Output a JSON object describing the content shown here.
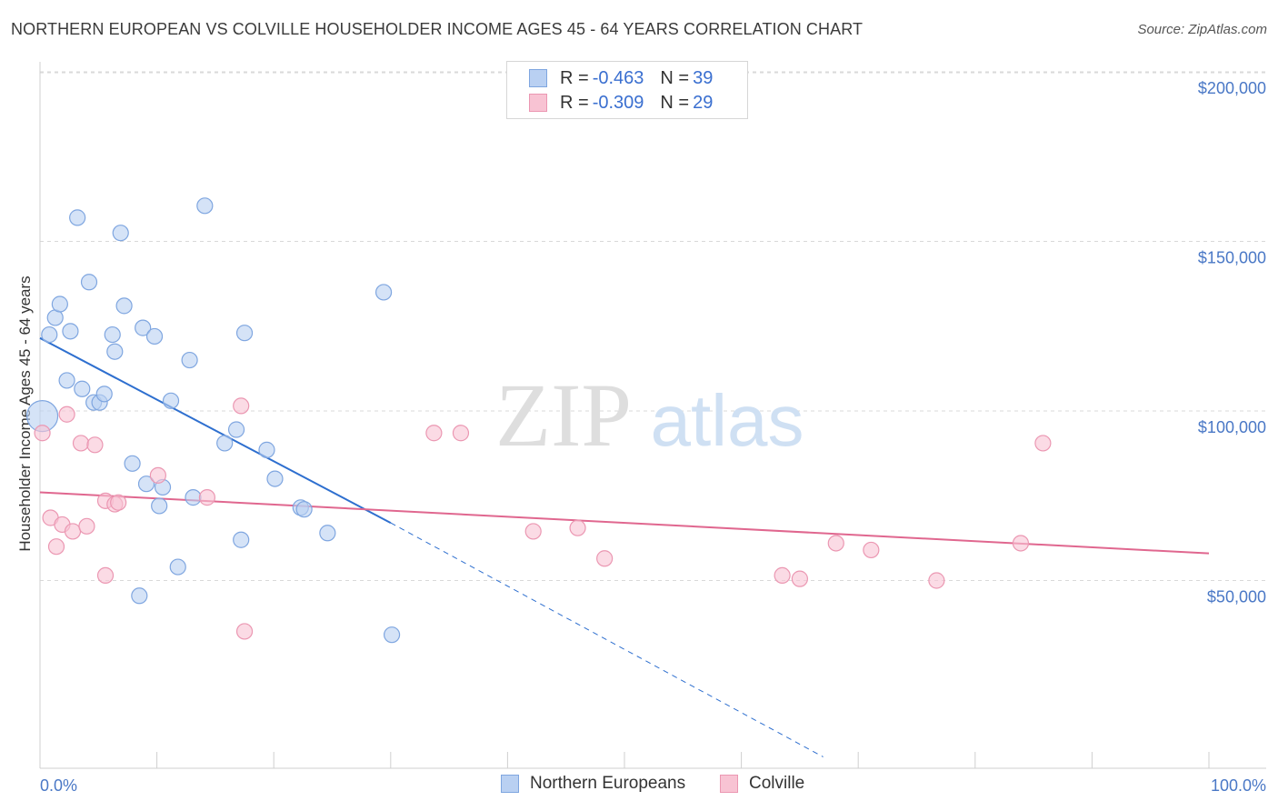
{
  "header": {
    "title": "NORTHERN EUROPEAN VS COLVILLE HOUSEHOLDER INCOME AGES 45 - 64 YEARS CORRELATION CHART",
    "source": "Source: ZipAtlas.com"
  },
  "watermark": {
    "zip": "ZIP",
    "atlas": "atlas"
  },
  "legend": {
    "rows": [
      {
        "r_label": "R = ",
        "r_value": "-0.463",
        "n_label": "N = ",
        "n_value": "39"
      },
      {
        "r_label": "R = ",
        "r_value": "-0.309",
        "n_label": "N = ",
        "n_value": "29"
      }
    ]
  },
  "colors": {
    "blue_fill": "#b9d0f2",
    "blue_stroke": "#7fa6e0",
    "blue_line": "#2e6fcf",
    "pink_fill": "#f8c3d3",
    "pink_stroke": "#eb97b2",
    "pink_line": "#e0678f",
    "grid": "#d9d9d9",
    "axis_text": "#4a78c6"
  },
  "chart_data": {
    "type": "scatter",
    "title": "NORTHERN EUROPEAN VS COLVILLE HOUSEHOLDER INCOME AGES 45 - 64 YEARS CORRELATION CHART",
    "xlabel": "",
    "ylabel": "Householder Income Ages 45 - 64 years",
    "xlim": [
      0,
      100
    ],
    "ylim": [
      0,
      210000
    ],
    "y_ticks": [
      {
        "value": 50000,
        "label": "$50,000"
      },
      {
        "value": 100000,
        "label": "$100,000"
      },
      {
        "value": 150000,
        "label": "$150,000"
      },
      {
        "value": 200000,
        "label": "$200,000"
      }
    ],
    "x_tick_labels": {
      "min": "0.0%",
      "max": "100.0%"
    },
    "legend_position": "bottom",
    "series": [
      {
        "name": "Northern Europeans",
        "color": "blue",
        "r": -0.463,
        "n": 39,
        "trend": {
          "x0": 0,
          "y0": 121500,
          "x1": 30,
          "y1": 67000,
          "dash_to_x": 67,
          "dash_to_y": -2000
        },
        "points": [
          [
            0.2,
            98500,
            "large"
          ],
          [
            0.8,
            122500
          ],
          [
            1.3,
            127500
          ],
          [
            1.7,
            131500
          ],
          [
            2.3,
            109000
          ],
          [
            2.6,
            123500
          ],
          [
            3.2,
            157000
          ],
          [
            3.6,
            106500
          ],
          [
            4.2,
            138000
          ],
          [
            4.6,
            102500
          ],
          [
            5.1,
            102500
          ],
          [
            5.5,
            105000
          ],
          [
            6.2,
            122500
          ],
          [
            6.4,
            117500
          ],
          [
            6.9,
            152500
          ],
          [
            7.2,
            131000
          ],
          [
            7.9,
            84500
          ],
          [
            8.5,
            45500
          ],
          [
            8.8,
            124500
          ],
          [
            9.1,
            78500
          ],
          [
            9.8,
            122000
          ],
          [
            10.2,
            72000
          ],
          [
            10.5,
            77500
          ],
          [
            11.2,
            103000
          ],
          [
            11.8,
            54000
          ],
          [
            12.8,
            115000
          ],
          [
            13.1,
            74500
          ],
          [
            14.1,
            160500
          ],
          [
            15.8,
            90500
          ],
          [
            16.8,
            94500
          ],
          [
            17.2,
            62000
          ],
          [
            17.5,
            123000
          ],
          [
            19.4,
            88500
          ],
          [
            20.1,
            80000
          ],
          [
            22.3,
            71500
          ],
          [
            22.6,
            71000
          ],
          [
            24.6,
            64000
          ],
          [
            29.4,
            135000
          ],
          [
            30.1,
            34000
          ]
        ]
      },
      {
        "name": "Colville",
        "color": "pink",
        "r": -0.309,
        "n": 29,
        "trend": {
          "x0": 0,
          "y0": 76000,
          "x1": 100,
          "y1": 58000
        },
        "points": [
          [
            0.2,
            93500
          ],
          [
            0.9,
            68500
          ],
          [
            1.4,
            60000
          ],
          [
            1.9,
            66500
          ],
          [
            2.3,
            99000
          ],
          [
            2.8,
            64500
          ],
          [
            3.5,
            90500
          ],
          [
            4.0,
            66000
          ],
          [
            4.7,
            90000
          ],
          [
            5.6,
            51500
          ],
          [
            5.6,
            73500
          ],
          [
            6.4,
            72500
          ],
          [
            6.7,
            73000
          ],
          [
            10.1,
            81000
          ],
          [
            14.3,
            74500
          ],
          [
            17.2,
            101500
          ],
          [
            17.5,
            35000
          ],
          [
            33.7,
            93500
          ],
          [
            36.0,
            93500
          ],
          [
            42.2,
            64500
          ],
          [
            46.0,
            65500
          ],
          [
            48.3,
            56500
          ],
          [
            63.5,
            51500
          ],
          [
            65.0,
            50500
          ],
          [
            68.1,
            61000
          ],
          [
            71.1,
            59000
          ],
          [
            76.7,
            50000
          ],
          [
            83.9,
            61000
          ],
          [
            85.8,
            90500
          ]
        ]
      }
    ]
  }
}
